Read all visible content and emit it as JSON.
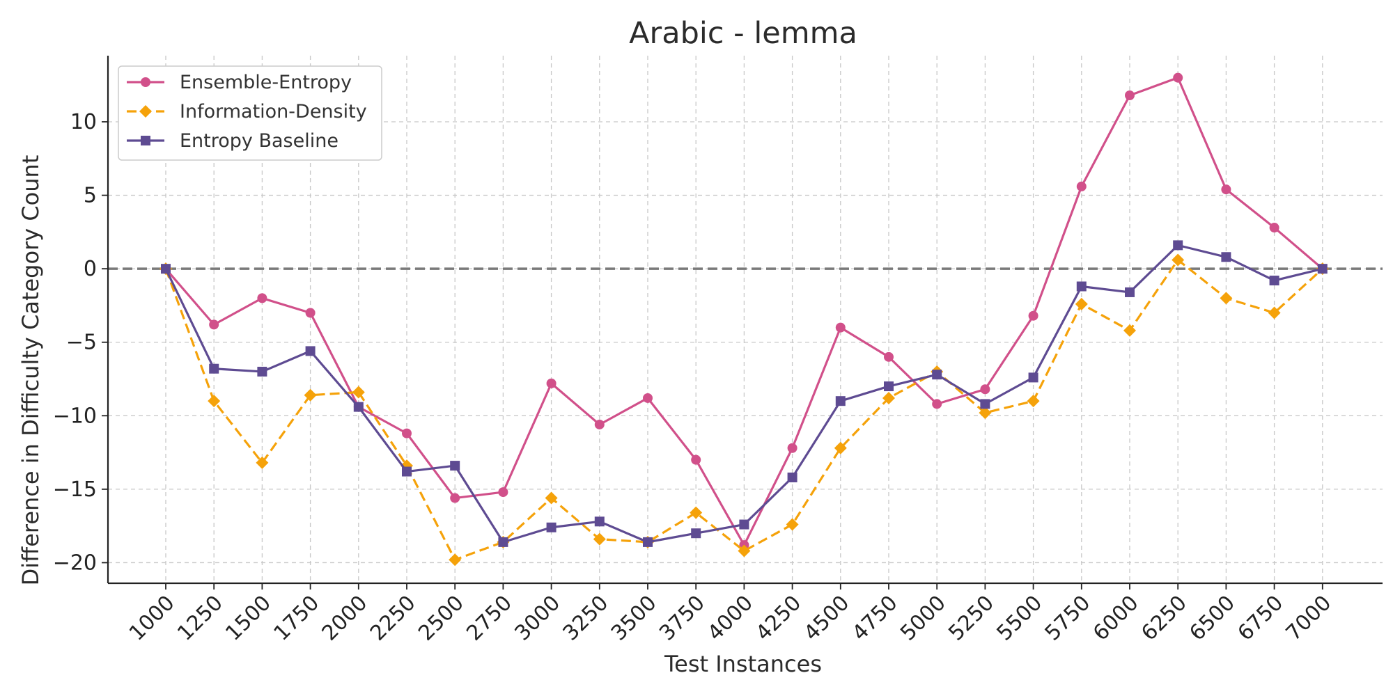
{
  "chart_data": {
    "type": "line",
    "title": "Arabic - lemma",
    "xlabel": "Test Instances",
    "ylabel": "Difference in Difficulty Category Count",
    "x": [
      1000,
      1250,
      1500,
      1750,
      2000,
      2250,
      2500,
      2750,
      3000,
      3250,
      3500,
      3750,
      4000,
      4250,
      4500,
      4750,
      5000,
      5250,
      5500,
      5750,
      6000,
      6250,
      6500,
      6750,
      7000
    ],
    "x_tick_labels": [
      "1000",
      "1250",
      "1500",
      "1750",
      "2000",
      "2250",
      "2500",
      "2750",
      "3000",
      "3250",
      "3500",
      "3750",
      "4000",
      "4250",
      "4500",
      "4750",
      "5000",
      "5250",
      "5500",
      "5750",
      "6000",
      "6250",
      "6500",
      "6750",
      "7000"
    ],
    "y_ticks": [
      10,
      5,
      0,
      -5,
      -10,
      -15,
      -20
    ],
    "y_tick_labels": [
      "10",
      "5",
      "0",
      "−5",
      "−10",
      "−15",
      "−20"
    ],
    "ylim": [
      -21.4,
      14.5
    ],
    "grid": true,
    "legend_position": "top-left",
    "reference_line_y": 0,
    "series": [
      {
        "name": "Ensemble-Entropy",
        "color": "#d1508a",
        "marker": "circle",
        "line_style": "solid",
        "values": [
          0,
          -3.8,
          -2,
          -3,
          -9.4,
          -11.2,
          -15.6,
          -15.2,
          -7.8,
          -10.6,
          -8.8,
          -13,
          -18.8,
          -12.2,
          -4,
          -6,
          -9.2,
          -8.2,
          -3.2,
          5.6,
          11.8,
          13,
          5.4,
          2.8,
          0
        ]
      },
      {
        "name": "Information-Density",
        "color": "#f5a20a",
        "marker": "diamond",
        "line_style": "dashed",
        "values": [
          0,
          -9,
          -13.2,
          -8.6,
          -8.4,
          -13.4,
          -19.8,
          -18.6,
          -15.6,
          -18.4,
          -18.6,
          -16.6,
          -19.2,
          -17.4,
          -12.2,
          -8.8,
          -7,
          -9.8,
          -9,
          -2.4,
          -4.2,
          0.6,
          -2,
          -3,
          0
        ]
      },
      {
        "name": "Entropy Baseline",
        "color": "#5e4b92",
        "marker": "square",
        "line_style": "solid",
        "values": [
          0,
          -6.8,
          -7,
          -5.6,
          -9.4,
          -13.8,
          -13.4,
          -18.6,
          -17.6,
          -17.2,
          -18.6,
          -18,
          -17.4,
          -14.2,
          -9,
          -8,
          -7.2,
          -9.2,
          -7.4,
          -1.2,
          -1.6,
          1.6,
          0.8,
          -0.8,
          0
        ]
      }
    ]
  }
}
